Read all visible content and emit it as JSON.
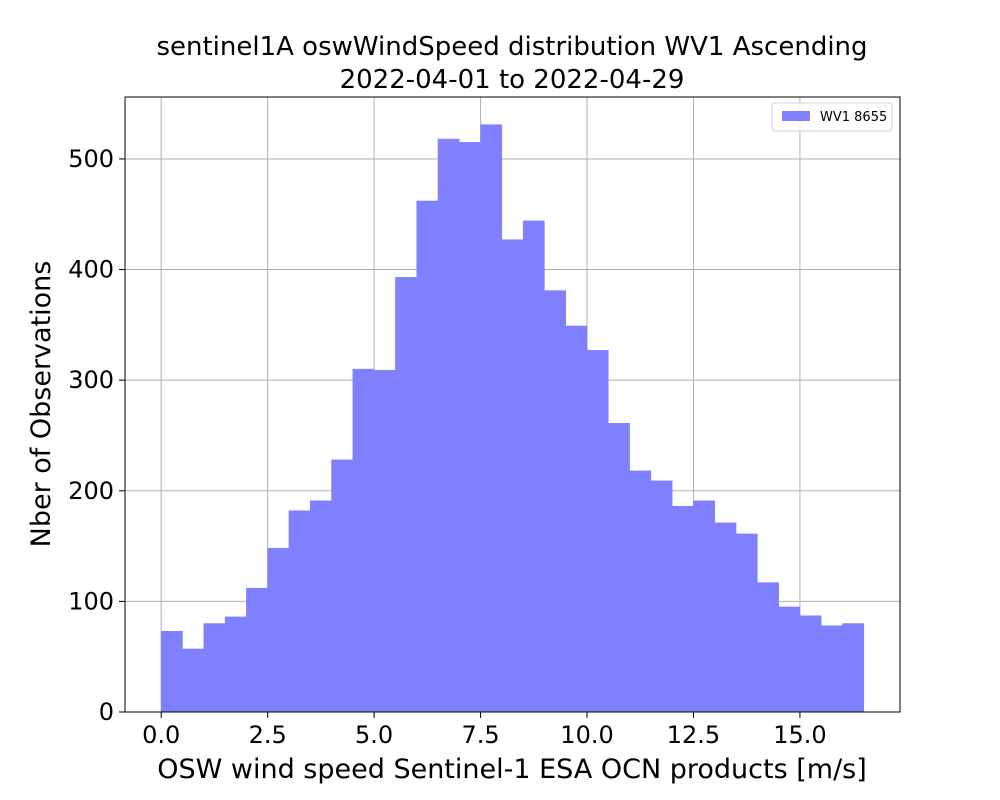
{
  "chart_data": {
    "type": "bar",
    "title": "sentinel1A oswWindSpeed distribution WV1 Ascending",
    "subtitle": "2022-04-01 to 2022-04-29",
    "xlabel": "OSW wind speed Sentinel-1 ESA OCN products [m/s]",
    "ylabel": "Nber of Observations",
    "xlim": [
      -0.85,
      17.35
    ],
    "ylim": [
      0,
      556
    ],
    "xticks": [
      0.0,
      2.5,
      5.0,
      7.5,
      10.0,
      12.5,
      15.0
    ],
    "xtick_labels": [
      "0.0",
      "2.5",
      "5.0",
      "7.5",
      "10.0",
      "12.5",
      "15.0"
    ],
    "yticks": [
      0,
      100,
      200,
      300,
      400,
      500
    ],
    "ytick_labels": [
      "0",
      "100",
      "200",
      "300",
      "400",
      "500"
    ],
    "grid": true,
    "legend_position": "top-right",
    "bin_width": 0.5,
    "bin_starts": [
      0.0,
      0.5,
      1.0,
      1.5,
      2.0,
      2.5,
      3.0,
      3.5,
      4.0,
      4.5,
      5.0,
      5.5,
      6.0,
      6.5,
      7.0,
      7.5,
      8.0,
      8.5,
      9.0,
      9.5,
      10.0,
      10.5,
      11.0,
      11.5,
      12.0,
      12.5,
      13.0,
      13.5,
      14.0,
      14.5,
      15.0,
      15.5,
      16.0
    ],
    "series": [
      {
        "name": "WV1 8655",
        "color": "#8080ff",
        "values": [
          73,
          57,
          80,
          86,
          112,
          148,
          182,
          191,
          228,
          310,
          309,
          393,
          462,
          518,
          515,
          531,
          427,
          444,
          381,
          349,
          327,
          261,
          218,
          209,
          186,
          191,
          171,
          161,
          117,
          95,
          87,
          78,
          80
        ]
      }
    ]
  }
}
